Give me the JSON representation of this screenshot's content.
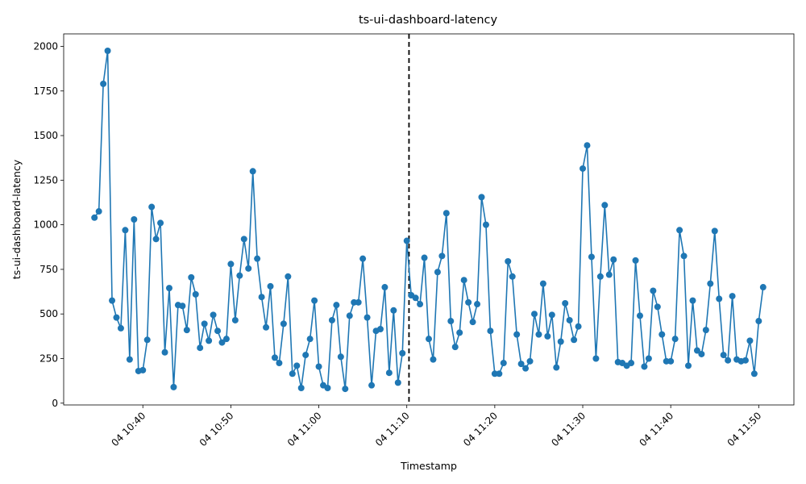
{
  "chart_data": {
    "type": "line",
    "title": "ts-ui-dashboard-latency",
    "xlabel": "Timestamp",
    "ylabel": "ts-ui-dashboard-latency",
    "x_start": "04 10:34:30",
    "x_step_seconds": 30,
    "xlim": [
      "04 10:31:00",
      "04 11:54:00"
    ],
    "ylim": [
      -10,
      2070
    ],
    "x_ticks": [
      "04 10:40",
      "04 10:50",
      "04 11:00",
      "04 11:10",
      "04 11:20",
      "04 11:30",
      "04 11:40",
      "04 11:50"
    ],
    "y_ticks": [
      "0",
      "250",
      "500",
      "750",
      "1000",
      "1250",
      "1500",
      "1750",
      "2000"
    ],
    "vline_x": "04 11:10:15",
    "grid": false,
    "color": "#1f77b4",
    "series": [
      {
        "values": [
          1040,
          1075,
          1790,
          1975,
          575,
          480,
          420,
          970,
          245,
          1030,
          180,
          185,
          355,
          1100,
          920,
          1010,
          285,
          645,
          90,
          550,
          545,
          410,
          705,
          610,
          310,
          445,
          350,
          495,
          405,
          340,
          360,
          780,
          465,
          715,
          920,
          755,
          1300,
          810,
          595,
          425,
          655,
          255,
          225,
          445,
          710,
          165,
          210,
          85,
          270,
          360,
          575,
          205,
          100,
          85,
          465,
          550,
          260,
          80,
          490,
          565,
          565,
          810,
          480,
          100,
          405,
          415,
          650,
          170,
          520,
          115,
          280,
          910,
          605,
          590,
          555,
          815,
          360,
          245,
          735,
          825,
          1065,
          460,
          315,
          395,
          690,
          565,
          455,
          555,
          1155,
          1000,
          405,
          165,
          165,
          225,
          795,
          710,
          385,
          220,
          195,
          235,
          500,
          385,
          670,
          375,
          495,
          200,
          345,
          560,
          465,
          355,
          430,
          1315,
          1445,
          820,
          250,
          710,
          1110,
          720,
          805,
          230,
          225,
          210,
          225,
          800,
          490,
          205,
          250,
          630,
          540,
          385,
          235,
          235,
          360,
          970,
          825,
          210,
          575,
          295,
          275,
          410,
          670,
          965,
          585,
          270,
          240,
          600,
          245,
          235,
          240,
          350,
          165,
          460,
          650
        ]
      }
    ]
  }
}
